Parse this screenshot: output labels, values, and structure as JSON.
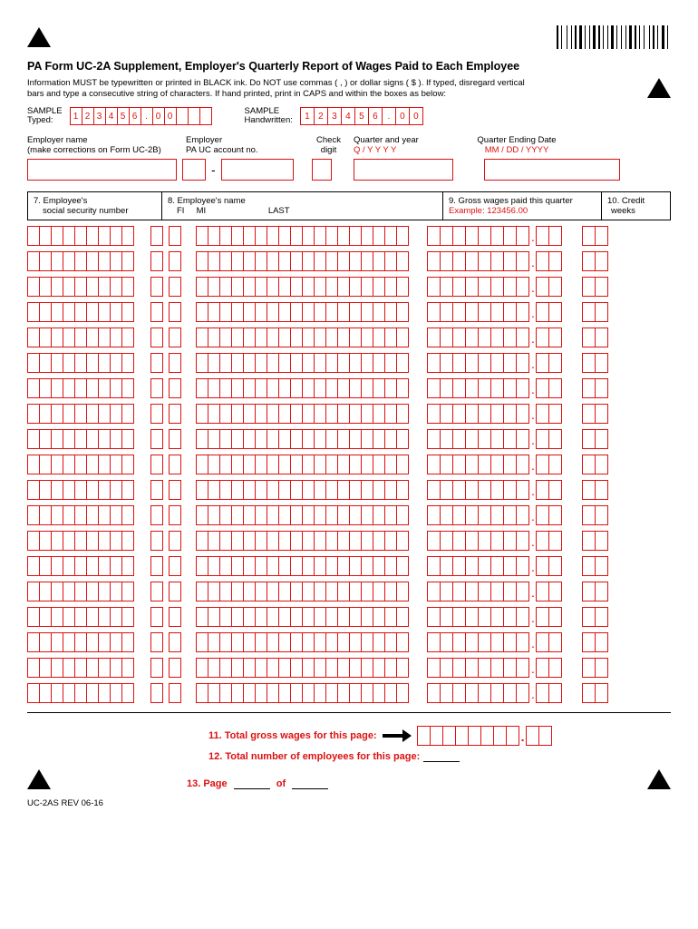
{
  "title": "PA Form UC-2A Supplement, Employer's Quarterly Report of Wages Paid to Each Employee",
  "instructions": "Information MUST be typewritten or printed in BLACK ink. Do NOT use commas ( , ) or dollar signs ( $ ). If typed, disregard vertical bars and type a consecutive string of characters. If hand printed, print in CAPS and within the boxes as below:",
  "sample_typed_label": "SAMPLE\nTyped:",
  "sample_typed_value": [
    "1",
    "2",
    "3",
    "4",
    "5",
    "6",
    ".",
    "0",
    "0",
    "",
    "",
    ""
  ],
  "sample_hand_label": "SAMPLE\nHandwritten:",
  "sample_hand_value": [
    "1",
    "2",
    "3",
    "4",
    "5",
    "6",
    ".",
    "0",
    "0"
  ],
  "labels": {
    "employer_name": "Employer name",
    "employer_name_sub": "(make corrections on Form UC-2B)",
    "employer_acct": "Employer",
    "employer_acct_sub": "PA UC account no.",
    "check_digit": "Check\ndigit",
    "quarter_year": "Quarter and year",
    "quarter_year_fmt": "Q  /  Y Y Y Y",
    "quarter_end": "Quarter Ending Date",
    "quarter_end_fmt": "MM / DD / YYYY"
  },
  "table_head": {
    "col7": "7. Employee's",
    "col7_sub": "social security number",
    "col8": "8. Employee's name",
    "col8_sub": "FI     MI                          LAST",
    "col9": "9. Gross wages paid this quarter",
    "col9_ex": "Example:  123456.00",
    "col10": "10. Credit",
    "col10_sub": "weeks"
  },
  "row_count": 19,
  "columns": {
    "ssn": 9,
    "fi": 1,
    "mi": 1,
    "last": 18,
    "wages_int": 8,
    "wages_dec": 2,
    "credit": 2
  },
  "totals": {
    "line11": "11. Total gross wages for this page:",
    "line12": "12. Total number of employees for this page:",
    "line13_a": "13. Page",
    "line13_b": "of"
  },
  "revision": "UC-2AS REV 06-16",
  "colors": {
    "form_red": "#d11",
    "black": "#000"
  }
}
